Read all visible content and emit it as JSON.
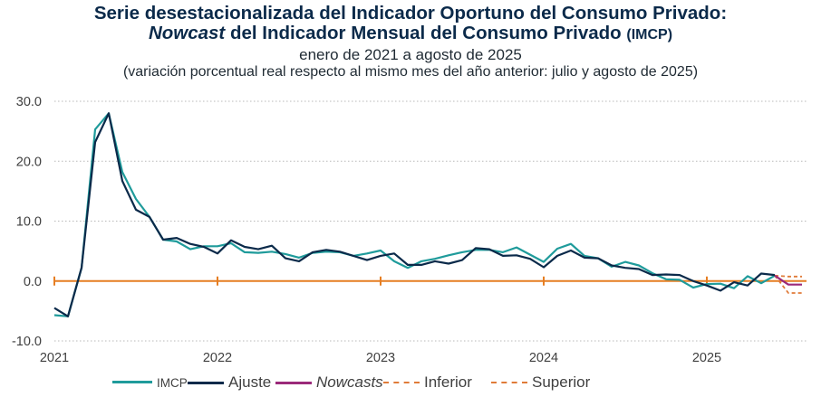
{
  "header": {
    "title_line1": "Serie desestacionalizada del Indicador Oportuno del Consumo Privado:",
    "title_line2_italic": "Nowcast",
    "title_line2_rest": " del Indicador Mensual del Consumo Privado ",
    "title_line2_abbr": "(IMCP)",
    "subtitle": "enero de 2021 a agosto de 2025",
    "note": "(variación porcentual real respecto al mismo mes del año anterior: julio y agosto de 2025)"
  },
  "legend": {
    "items": [
      {
        "label": "IMCP",
        "color": "#1f9b9b",
        "style": "solid"
      },
      {
        "label": "Ajuste",
        "color": "#0b2a4a",
        "style": "solid"
      },
      {
        "label": "Nowcasts",
        "color": "#9b2a7a",
        "style": "solid"
      },
      {
        "label": "Inferior",
        "color": "#e07b39",
        "style": "dashed"
      },
      {
        "label": "Superior",
        "color": "#e07b39",
        "style": "dashed"
      }
    ]
  },
  "chart_data": {
    "type": "line",
    "title": "Serie desestacionalizada del Indicador Oportuno del Consumo Privado: Nowcast del Indicador Mensual del Consumo Privado (IMCP)",
    "subtitle": "enero de 2021 a agosto de 2025",
    "xlabel": "",
    "ylabel": "",
    "ylim": [
      -10,
      30
    ],
    "yticks": [
      "30.0",
      "20.0",
      "10.0",
      "0.0",
      "-10.0"
    ],
    "ytick_values": [
      30,
      20,
      10,
      0,
      -10
    ],
    "xticks": [
      "2021",
      "2022",
      "2023",
      "2024",
      "2025"
    ],
    "x_start": "2021-01",
    "x_end": "2025-08",
    "grid": "horizontal dotted",
    "legend_position": "bottom",
    "zero_line_color": "#e67e22",
    "series": [
      {
        "name": "IMCP",
        "color": "#1f9b9b",
        "start_index": 0,
        "values": [
          -5.7,
          -5.9,
          2.2,
          25.3,
          28.0,
          18.2,
          13.7,
          10.7,
          6.9,
          6.6,
          5.3,
          5.8,
          5.8,
          6.3,
          4.8,
          4.7,
          4.9,
          4.5,
          3.9,
          4.7,
          4.9,
          4.8,
          4.2,
          4.6,
          5.1,
          3.3,
          2.2,
          3.3,
          3.7,
          4.3,
          4.8,
          5.2,
          5.2,
          4.8,
          5.6,
          4.4,
          3.2,
          5.4,
          6.2,
          4.2,
          3.8,
          2.4,
          3.2,
          2.6,
          1.3,
          0.3,
          0.2,
          -1.1,
          -0.5,
          -0.45,
          -1.2,
          0.8,
          -0.35,
          0.9
        ]
      },
      {
        "name": "Ajuste",
        "color": "#0b2a4a",
        "start_index": 0,
        "values": [
          -4.5,
          -5.9,
          2.2,
          23.2,
          28.0,
          16.7,
          11.9,
          10.7,
          6.9,
          7.2,
          6.2,
          5.7,
          4.6,
          6.8,
          5.7,
          5.3,
          5.9,
          3.8,
          3.3,
          4.8,
          5.2,
          4.9,
          4.2,
          3.5,
          4.2,
          4.6,
          2.7,
          2.7,
          3.3,
          2.9,
          3.5,
          5.5,
          5.3,
          4.2,
          4.3,
          3.7,
          2.3,
          4.2,
          5.1,
          3.9,
          3.8,
          2.6,
          2.2,
          2.0,
          1.0,
          1.1,
          1.0,
          0.0,
          -0.75,
          -1.6,
          -0.2,
          -0.75,
          1.25,
          1.0
        ]
      },
      {
        "name": "Nowcasts",
        "color": "#9b2a7a",
        "start_index": 53,
        "values": [
          0.9,
          -0.6,
          -0.6
        ]
      },
      {
        "name": "Inferior",
        "color": "#e07b39",
        "dashed": true,
        "start_index": 53,
        "values": [
          0.9,
          -2.0,
          -2.0
        ]
      },
      {
        "name": "Superior",
        "color": "#e07b39",
        "dashed": true,
        "start_index": 53,
        "values": [
          0.9,
          0.75,
          0.75
        ]
      }
    ]
  }
}
